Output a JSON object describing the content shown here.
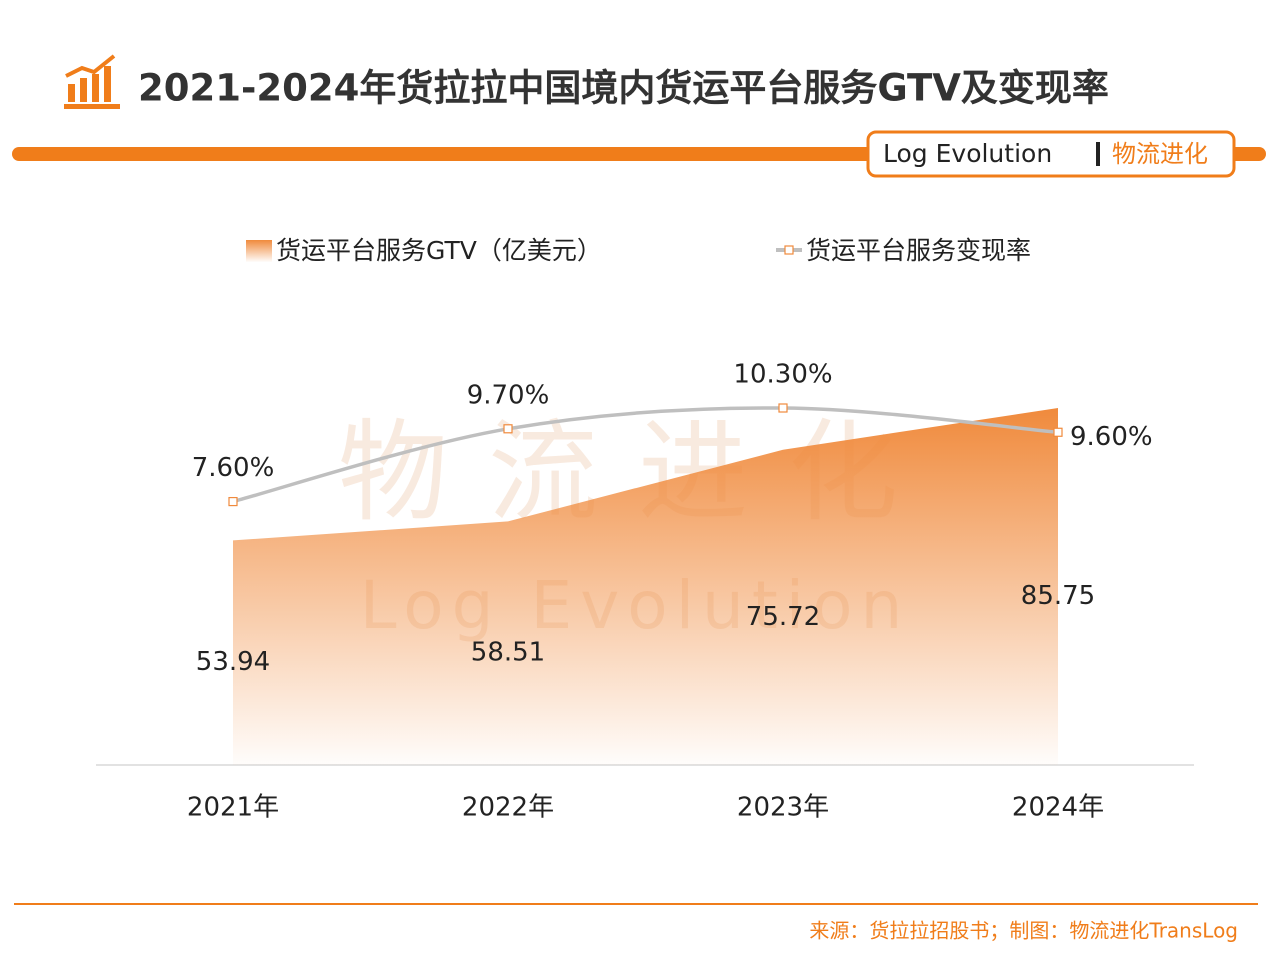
{
  "chart_data": {
    "type": "area",
    "title": "2021-2024年货拉拉中国境内货运平台服务GTV及变现率",
    "brand": {
      "en": "Log Evolution",
      "cn": "物流进化"
    },
    "categories": [
      "2021年",
      "2022年",
      "2023年",
      "2024年"
    ],
    "series": [
      {
        "name": "货运平台服务GTV（亿美元）",
        "type": "area",
        "color": "#f08a3c",
        "values": [
          53.94,
          58.51,
          75.72,
          85.75
        ]
      },
      {
        "name": "货运平台服务变现率",
        "type": "line",
        "axis": "y2",
        "color": "#bfbfbf",
        "values": [
          7.6,
          9.7,
          10.3,
          9.6
        ],
        "value_labels": [
          "7.60%",
          "9.70%",
          "10.30%",
          "9.60%"
        ]
      }
    ],
    "source": "来源：货拉拉招股书；制图：物流进化TransLog"
  }
}
